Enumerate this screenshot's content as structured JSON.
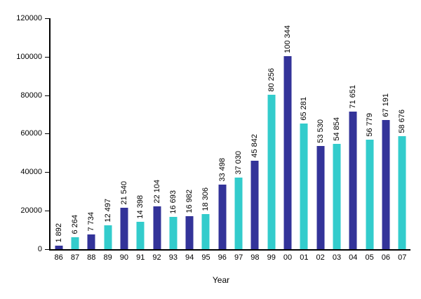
{
  "window": {
    "background": "#ffffff"
  },
  "chart_data": {
    "type": "bar",
    "title": "",
    "xlabel": "Year",
    "ylabel": "",
    "ylim": [
      0,
      120000
    ],
    "ytick_labels": [
      "0",
      "20000",
      "40000",
      "60000",
      "80000",
      "100000",
      "120000"
    ],
    "grid": "off",
    "legend": "none",
    "value_label_rotation": "vertical-bottom-to-top",
    "categories": [
      "86",
      "87",
      "88",
      "89",
      "90",
      "91",
      "92",
      "93",
      "94",
      "95",
      "96",
      "97",
      "98",
      "99",
      "00",
      "01",
      "02",
      "03",
      "04",
      "05",
      "06",
      "07"
    ],
    "values": [
      1892,
      6264,
      7734,
      12497,
      21540,
      14398,
      22104,
      16693,
      16982,
      18306,
      33498,
      37030,
      45842,
      80256,
      100344,
      65281,
      53530,
      54854,
      71651,
      56779,
      67191,
      58676
    ],
    "value_labels": [
      "1 892",
      "6 264",
      "7 734",
      "12 497",
      "21 540",
      "14 398",
      "22 104",
      "16 693",
      "16 982",
      "18 306",
      "33 498",
      "37 030",
      "45 842",
      "80 256",
      "100 344",
      "65 281",
      "53 530",
      "54 854",
      "71 651",
      "56 779",
      "67 191",
      "58 676"
    ],
    "colors": {
      "bar_color_a": "#333399",
      "bar_color_b": "#33CCCC",
      "axis": "#000000",
      "text": "#000000"
    }
  }
}
